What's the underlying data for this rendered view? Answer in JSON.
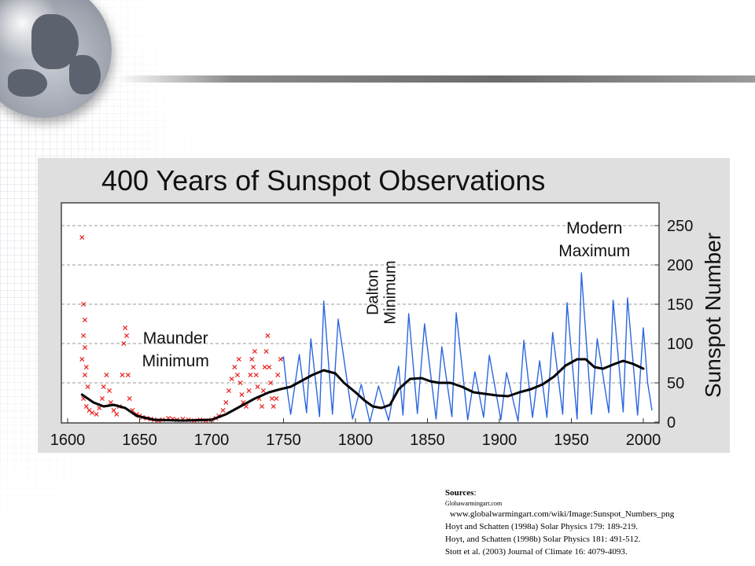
{
  "chart_data": {
    "type": "line",
    "title": "400 Years of Sunspot Observations",
    "ylabel": "Sunspot Number",
    "xlim": [
      1600,
      2010
    ],
    "ylim": [
      0,
      275
    ],
    "x_ticks": [
      1600,
      1650,
      1700,
      1750,
      1800,
      1850,
      1900,
      1950,
      2000
    ],
    "y_ticks": [
      0,
      50,
      100,
      150,
      200,
      250
    ],
    "grid": "horizontal dashed",
    "annotations": [
      {
        "lines": [
          "Maunder",
          "Minimum"
        ],
        "x": 1675,
        "y": 100,
        "orientation": "horizontal"
      },
      {
        "lines": [
          "Dalton",
          "Minimum"
        ],
        "x": 1810,
        "y": 165,
        "orientation": "vertical"
      },
      {
        "lines": [
          "Modern",
          "Maximum"
        ],
        "x": 1966,
        "y": 240,
        "orientation": "horizontal"
      }
    ],
    "series": [
      {
        "kind": "scatter",
        "color": "#e8231f",
        "marker": "x",
        "points": [
          [
            1610,
            235
          ],
          [
            1611,
            150
          ],
          [
            1612,
            130
          ],
          [
            1611,
            110
          ],
          [
            1612,
            95
          ],
          [
            1610,
            80
          ],
          [
            1613,
            70
          ],
          [
            1612,
            60
          ],
          [
            1614,
            45
          ],
          [
            1611,
            30
          ],
          [
            1613,
            20
          ],
          [
            1615,
            15
          ],
          [
            1617,
            12
          ],
          [
            1620,
            10
          ],
          [
            1622,
            18
          ],
          [
            1624,
            30
          ],
          [
            1625,
            45
          ],
          [
            1627,
            60
          ],
          [
            1629,
            40
          ],
          [
            1630,
            25
          ],
          [
            1632,
            15
          ],
          [
            1634,
            10
          ],
          [
            1636,
            20
          ],
          [
            1638,
            60
          ],
          [
            1639,
            100
          ],
          [
            1640,
            120
          ],
          [
            1641,
            110
          ],
          [
            1642,
            60
          ],
          [
            1643,
            30
          ],
          [
            1645,
            15
          ],
          [
            1648,
            10
          ],
          [
            1650,
            8
          ],
          [
            1652,
            6
          ],
          [
            1655,
            5
          ],
          [
            1658,
            4
          ],
          [
            1660,
            3
          ],
          [
            1663,
            2
          ],
          [
            1666,
            3
          ],
          [
            1670,
            5
          ],
          [
            1673,
            4
          ],
          [
            1676,
            3
          ],
          [
            1680,
            4
          ],
          [
            1684,
            3
          ],
          [
            1688,
            2
          ],
          [
            1692,
            3
          ],
          [
            1696,
            2
          ],
          [
            1700,
            3
          ],
          [
            1703,
            5
          ],
          [
            1705,
            8
          ],
          [
            1708,
            15
          ],
          [
            1710,
            25
          ],
          [
            1712,
            40
          ],
          [
            1714,
            55
          ],
          [
            1716,
            70
          ],
          [
            1718,
            60
          ],
          [
            1719,
            80
          ],
          [
            1720,
            50
          ],
          [
            1721,
            35
          ],
          [
            1722,
            25
          ],
          [
            1724,
            20
          ],
          [
            1726,
            40
          ],
          [
            1727,
            60
          ],
          [
            1728,
            80
          ],
          [
            1729,
            70
          ],
          [
            1730,
            90
          ],
          [
            1731,
            60
          ],
          [
            1732,
            45
          ],
          [
            1733,
            30
          ],
          [
            1735,
            20
          ],
          [
            1736,
            40
          ],
          [
            1737,
            70
          ],
          [
            1738,
            90
          ],
          [
            1739,
            110
          ],
          [
            1740,
            70
          ],
          [
            1741,
            50
          ],
          [
            1742,
            30
          ],
          [
            1743,
            20
          ],
          [
            1745,
            30
          ],
          [
            1746,
            60
          ],
          [
            1748,
            80
          ]
        ]
      },
      {
        "kind": "line",
        "color": "#2a66e0",
        "points": [
          [
            1749,
            80
          ],
          [
            1750,
            83
          ],
          [
            1752,
            48
          ],
          [
            1755,
            10
          ],
          [
            1761,
            86
          ],
          [
            1766,
            12
          ],
          [
            1769,
            106
          ],
          [
            1775,
            7
          ],
          [
            1778,
            154
          ],
          [
            1784,
            10
          ],
          [
            1788,
            131
          ],
          [
            1798,
            4
          ],
          [
            1804,
            48
          ],
          [
            1810,
            0
          ],
          [
            1816,
            46
          ],
          [
            1823,
            2
          ],
          [
            1830,
            71
          ],
          [
            1833,
            9
          ],
          [
            1837,
            138
          ],
          [
            1843,
            11
          ],
          [
            1848,
            125
          ],
          [
            1856,
            4
          ],
          [
            1860,
            96
          ],
          [
            1867,
            7
          ],
          [
            1870,
            139
          ],
          [
            1878,
            3
          ],
          [
            1883,
            64
          ],
          [
            1889,
            6
          ],
          [
            1893,
            85
          ],
          [
            1901,
            3
          ],
          [
            1905,
            63
          ],
          [
            1913,
            1
          ],
          [
            1917,
            104
          ],
          [
            1923,
            6
          ],
          [
            1928,
            78
          ],
          [
            1933,
            6
          ],
          [
            1937,
            114
          ],
          [
            1944,
            10
          ],
          [
            1947,
            152
          ],
          [
            1954,
            4
          ],
          [
            1957,
            190
          ],
          [
            1964,
            10
          ],
          [
            1968,
            106
          ],
          [
            1976,
            12
          ],
          [
            1979,
            155
          ],
          [
            1986,
            13
          ],
          [
            1989,
            158
          ],
          [
            1996,
            9
          ],
          [
            2000,
            120
          ],
          [
            2003,
            50
          ],
          [
            2006,
            15
          ]
        ]
      },
      {
        "kind": "line",
        "color": "#000000",
        "points": [
          [
            1610,
            35
          ],
          [
            1618,
            25
          ],
          [
            1625,
            20
          ],
          [
            1632,
            22
          ],
          [
            1640,
            18
          ],
          [
            1648,
            8
          ],
          [
            1660,
            3
          ],
          [
            1680,
            2
          ],
          [
            1700,
            3
          ],
          [
            1710,
            10
          ],
          [
            1720,
            20
          ],
          [
            1730,
            30
          ],
          [
            1740,
            38
          ],
          [
            1748,
            42
          ],
          [
            1755,
            45
          ],
          [
            1762,
            52
          ],
          [
            1770,
            60
          ],
          [
            1778,
            66
          ],
          [
            1786,
            62
          ],
          [
            1792,
            50
          ],
          [
            1800,
            38
          ],
          [
            1806,
            28
          ],
          [
            1812,
            20
          ],
          [
            1818,
            18
          ],
          [
            1824,
            22
          ],
          [
            1830,
            42
          ],
          [
            1838,
            55
          ],
          [
            1846,
            56
          ],
          [
            1852,
            52
          ],
          [
            1858,
            50
          ],
          [
            1866,
            50
          ],
          [
            1874,
            45
          ],
          [
            1882,
            38
          ],
          [
            1890,
            36
          ],
          [
            1898,
            34
          ],
          [
            1906,
            33
          ],
          [
            1914,
            38
          ],
          [
            1922,
            42
          ],
          [
            1930,
            48
          ],
          [
            1938,
            58
          ],
          [
            1946,
            72
          ],
          [
            1954,
            80
          ],
          [
            1960,
            80
          ],
          [
            1966,
            70
          ],
          [
            1972,
            68
          ],
          [
            1980,
            74
          ],
          [
            1986,
            78
          ],
          [
            1993,
            74
          ],
          [
            2000,
            68
          ]
        ]
      }
    ]
  },
  "sources": {
    "heading": "Sources",
    "heading_suffix": ":",
    "lines": [
      "Globawarmingart.com",
      "www.globalwarmingart.com/wiki/Image:Sunspot_Numbers_png",
      "Hoyt and Schatten (1998a) Solar Physics 179: 189-219.",
      "Hoyt, and Schatten (1998b) Solar Physics 181: 491-512.",
      "Stott et al. (2003) Journal of Climate 16: 4079-4093."
    ]
  }
}
